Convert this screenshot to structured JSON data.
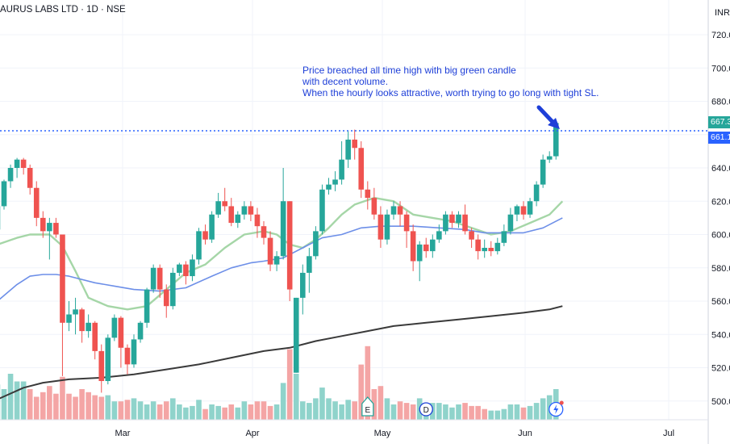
{
  "header": {
    "symbol_title": "AURUS LABS LTD · 1D · NSE",
    "currency": "INR"
  },
  "annotation": {
    "lines": [
      "Price breached all time high with big green candle",
      "with decent volume.",
      "When the hourly looks attractive, worth trying to go long with tight SL."
    ]
  },
  "price_tags": {
    "upper": "667.3",
    "lower": "661.1"
  },
  "colors": {
    "up": "#26a69a",
    "down": "#ef5350",
    "vol_up": "#8fd3cb",
    "vol_down": "#f4a5a5",
    "ma_fast": "#a5d6a7",
    "ma_mid": "#6d8fe8",
    "ma_slow": "#3a3a3a",
    "annotation": "#1e3fd8"
  },
  "events": [
    {
      "label": "E",
      "icon": "earnings-marker"
    },
    {
      "label": "D",
      "icon": "dividend-marker"
    },
    {
      "label": "",
      "icon": "lightning-icon"
    }
  ],
  "chart_data": {
    "type": "candlestick",
    "title": "AURUS LABS LTD · 1D · NSE",
    "ylim": [
      490,
      730
    ],
    "y_ticks": [
      "720.00",
      "700.00",
      "680.00",
      "660.00",
      "640.00",
      "620.00",
      "600.00",
      "580.00",
      "560.00",
      "540.00",
      "520.00",
      "500.00"
    ],
    "x_ticks": [
      "Mar",
      "Apr",
      "May",
      "Jun",
      "Jul"
    ],
    "candles": [
      [
        -1,
        603,
        617,
        620,
        600
      ],
      [
        0,
        617,
        632,
        633,
        615
      ],
      [
        1,
        632,
        640,
        642,
        628
      ],
      [
        2,
        640,
        645,
        646,
        634
      ],
      [
        3,
        645,
        640,
        646,
        636
      ],
      [
        4,
        640,
        628,
        642,
        624
      ],
      [
        5,
        628,
        610,
        632,
        605
      ],
      [
        6,
        610,
        602,
        614,
        598
      ],
      [
        7,
        602,
        607,
        610,
        585
      ],
      [
        8,
        607,
        600,
        610,
        598
      ],
      [
        9,
        600,
        547,
        600,
        515
      ],
      [
        10,
        547,
        552,
        560,
        542
      ],
      [
        11,
        552,
        555,
        562,
        540
      ],
      [
        12,
        555,
        542,
        556,
        535
      ],
      [
        13,
        542,
        547,
        552,
        538
      ],
      [
        14,
        547,
        530,
        548,
        525
      ],
      [
        15,
        530,
        512,
        534,
        505
      ],
      [
        16,
        512,
        538,
        540,
        510
      ],
      [
        17,
        538,
        550,
        552,
        536
      ],
      [
        18,
        550,
        532,
        551,
        520
      ],
      [
        19,
        532,
        522,
        534,
        516
      ],
      [
        20,
        522,
        537,
        540,
        520
      ],
      [
        21,
        537,
        547,
        548,
        535
      ],
      [
        22,
        547,
        567,
        568,
        544
      ],
      [
        23,
        567,
        580,
        582,
        565
      ],
      [
        24,
        580,
        567,
        582,
        562
      ],
      [
        25,
        567,
        557,
        570,
        550
      ],
      [
        26,
        557,
        577,
        580,
        555
      ],
      [
        27,
        577,
        582,
        583,
        575
      ],
      [
        28,
        582,
        575,
        584,
        570
      ],
      [
        29,
        575,
        585,
        588,
        572
      ],
      [
        30,
        585,
        602,
        604,
        582
      ],
      [
        31,
        602,
        597,
        606,
        594
      ],
      [
        32,
        597,
        612,
        614,
        595
      ],
      [
        33,
        612,
        620,
        625,
        610
      ],
      [
        34,
        620,
        617,
        628,
        614
      ],
      [
        35,
        617,
        607,
        622,
        605
      ],
      [
        36,
        607,
        612,
        614,
        604
      ],
      [
        37,
        612,
        617,
        620,
        609
      ],
      [
        38,
        617,
        612,
        620,
        608
      ],
      [
        39,
        612,
        605,
        616,
        598
      ],
      [
        40,
        605,
        598,
        608,
        594
      ],
      [
        41,
        598,
        582,
        602,
        578
      ],
      [
        42,
        582,
        587,
        590,
        578
      ],
      [
        43,
        587,
        620,
        640,
        585
      ],
      [
        44,
        620,
        567,
        620,
        560
      ],
      [
        45,
        517,
        562,
        562,
        517
      ],
      [
        46,
        562,
        577,
        582,
        552
      ],
      [
        47,
        577,
        587,
        592,
        565
      ],
      [
        48,
        587,
        602,
        605,
        585
      ],
      [
        49,
        602,
        627,
        630,
        600
      ],
      [
        50,
        627,
        630,
        634,
        624
      ],
      [
        51,
        630,
        633,
        638,
        626
      ],
      [
        52,
        633,
        645,
        656,
        630
      ],
      [
        53,
        645,
        657,
        662,
        640
      ],
      [
        54,
        657,
        652,
        663,
        645
      ],
      [
        55,
        652,
        627,
        656,
        622
      ],
      [
        56,
        627,
        622,
        632,
        615
      ],
      [
        57,
        622,
        612,
        628,
        609
      ],
      [
        58,
        612,
        597,
        617,
        592
      ],
      [
        59,
        597,
        612,
        615,
        594
      ],
      [
        60,
        612,
        617,
        620,
        609
      ],
      [
        61,
        617,
        612,
        620,
        605
      ],
      [
        62,
        612,
        602,
        614,
        592
      ],
      [
        63,
        602,
        584,
        606,
        578
      ],
      [
        64,
        584,
        594,
        596,
        572
      ],
      [
        65,
        594,
        590,
        598,
        586
      ],
      [
        66,
        590,
        597,
        600,
        586
      ],
      [
        67,
        597,
        602,
        606,
        595
      ],
      [
        68,
        602,
        612,
        614,
        600
      ],
      [
        69,
        612,
        607,
        614,
        604
      ],
      [
        70,
        607,
        612,
        614,
        604
      ],
      [
        71,
        612,
        602,
        618,
        600
      ],
      [
        72,
        602,
        597,
        604,
        592
      ],
      [
        73,
        597,
        590,
        600,
        585
      ],
      [
        74,
        590,
        592,
        597,
        586
      ],
      [
        75,
        592,
        590,
        596,
        587
      ],
      [
        76,
        590,
        595,
        598,
        588
      ],
      [
        77,
        595,
        602,
        606,
        593
      ],
      [
        78,
        602,
        612,
        616,
        600
      ],
      [
        79,
        612,
        617,
        618,
        608
      ],
      [
        80,
        617,
        612,
        620,
        609
      ],
      [
        81,
        612,
        620,
        622,
        610
      ],
      [
        82,
        620,
        630,
        632,
        617
      ],
      [
        83,
        630,
        645,
        648,
        628
      ],
      [
        84,
        645,
        647,
        650,
        643
      ],
      [
        85,
        647,
        667,
        668,
        645
      ]
    ],
    "series": [
      {
        "style": "line",
        "points": [
          [
            -1,
            594
          ],
          [
            2,
            598
          ],
          [
            4,
            600
          ],
          [
            7,
            600
          ],
          [
            9,
            593
          ],
          [
            11,
            578
          ],
          [
            13,
            562
          ],
          [
            16,
            557
          ],
          [
            19,
            555
          ],
          [
            22,
            557
          ],
          [
            25,
            567
          ],
          [
            28,
            577
          ],
          [
            31,
            582
          ],
          [
            34,
            592
          ],
          [
            37,
            600
          ],
          [
            40,
            602
          ],
          [
            42,
            600
          ],
          [
            44,
            594
          ],
          [
            46,
            592
          ],
          [
            48,
            597
          ],
          [
            50,
            604
          ],
          [
            52,
            612
          ],
          [
            54,
            618
          ],
          [
            57,
            622
          ],
          [
            60,
            620
          ],
          [
            63,
            612
          ],
          [
            66,
            610
          ],
          [
            69,
            608
          ],
          [
            72,
            604
          ],
          [
            75,
            600
          ],
          [
            78,
            602
          ],
          [
            81,
            607
          ],
          [
            84,
            612
          ],
          [
            86,
            620
          ]
        ]
      },
      {
        "style": "line",
        "points": [
          [
            -1,
            560
          ],
          [
            2,
            570
          ],
          [
            4,
            575
          ],
          [
            6,
            576
          ],
          [
            8,
            576
          ],
          [
            10,
            575
          ],
          [
            14,
            571
          ],
          [
            17,
            569
          ],
          [
            20,
            567
          ],
          [
            24,
            566
          ],
          [
            28,
            568
          ],
          [
            32,
            575
          ],
          [
            35,
            580
          ],
          [
            38,
            583
          ],
          [
            40,
            584
          ],
          [
            43,
            586
          ],
          [
            46,
            592
          ],
          [
            49,
            598
          ],
          [
            52,
            600
          ],
          [
            55,
            604
          ],
          [
            58,
            605
          ],
          [
            63,
            605
          ],
          [
            67,
            604
          ],
          [
            71,
            603
          ],
          [
            74,
            601
          ],
          [
            77,
            601
          ],
          [
            80,
            601
          ],
          [
            83,
            604
          ],
          [
            86,
            610
          ]
        ]
      },
      {
        "style": "line",
        "points": [
          [
            -1,
            501
          ],
          [
            3,
            508
          ],
          [
            6,
            511
          ],
          [
            10,
            513
          ],
          [
            15,
            514
          ],
          [
            20,
            516
          ],
          [
            25,
            519
          ],
          [
            30,
            522
          ],
          [
            35,
            526
          ],
          [
            40,
            530
          ],
          [
            44,
            532
          ],
          [
            48,
            536
          ],
          [
            52,
            539
          ],
          [
            56,
            542
          ],
          [
            60,
            545
          ],
          [
            65,
            547
          ],
          [
            70,
            549
          ],
          [
            75,
            551
          ],
          [
            80,
            553
          ],
          [
            84,
            555
          ],
          [
            86,
            557
          ]
        ]
      }
    ],
    "volume": [
      [
        -1,
        23,
        1
      ],
      [
        0,
        20,
        1
      ],
      [
        1,
        30,
        1
      ],
      [
        2,
        25,
        1
      ],
      [
        3,
        25,
        1
      ],
      [
        4,
        20,
        0
      ],
      [
        5,
        15,
        0
      ],
      [
        6,
        18,
        0
      ],
      [
        7,
        22,
        0
      ],
      [
        8,
        17,
        0
      ],
      [
        9,
        28,
        0
      ],
      [
        10,
        17,
        0
      ],
      [
        11,
        15,
        0
      ],
      [
        12,
        20,
        0
      ],
      [
        13,
        18,
        0
      ],
      [
        14,
        16,
        0
      ],
      [
        15,
        15,
        0
      ],
      [
        16,
        16,
        1
      ],
      [
        17,
        12,
        1
      ],
      [
        18,
        12,
        0
      ],
      [
        19,
        13,
        0
      ],
      [
        20,
        14,
        1
      ],
      [
        21,
        12,
        1
      ],
      [
        22,
        10,
        1
      ],
      [
        23,
        12,
        1
      ],
      [
        24,
        10,
        0
      ],
      [
        25,
        12,
        0
      ],
      [
        26,
        14,
        1
      ],
      [
        27,
        10,
        1
      ],
      [
        28,
        8,
        1
      ],
      [
        29,
        9,
        1
      ],
      [
        30,
        13,
        1
      ],
      [
        31,
        7,
        0
      ],
      [
        32,
        10,
        1
      ],
      [
        33,
        9,
        1
      ],
      [
        34,
        8,
        0
      ],
      [
        35,
        10,
        0
      ],
      [
        36,
        8,
        1
      ],
      [
        37,
        12,
        1
      ],
      [
        38,
        10,
        0
      ],
      [
        39,
        12,
        0
      ],
      [
        40,
        12,
        0
      ],
      [
        41,
        9,
        0
      ],
      [
        42,
        10,
        1
      ],
      [
        43,
        24,
        1
      ],
      [
        44,
        46,
        0
      ],
      [
        45,
        30,
        1
      ],
      [
        46,
        12,
        1
      ],
      [
        47,
        11,
        1
      ],
      [
        48,
        14,
        1
      ],
      [
        49,
        21,
        1
      ],
      [
        50,
        14,
        1
      ],
      [
        51,
        12,
        1
      ],
      [
        52,
        10,
        1
      ],
      [
        53,
        13,
        1
      ],
      [
        54,
        12,
        0
      ],
      [
        55,
        36,
        0
      ],
      [
        56,
        48,
        0
      ],
      [
        57,
        20,
        0
      ],
      [
        58,
        22,
        0
      ],
      [
        59,
        14,
        1
      ],
      [
        60,
        10,
        1
      ],
      [
        61,
        12,
        0
      ],
      [
        62,
        11,
        0
      ],
      [
        63,
        10,
        0
      ],
      [
        64,
        14,
        1
      ],
      [
        65,
        10,
        1
      ],
      [
        66,
        11,
        1
      ],
      [
        67,
        11,
        1
      ],
      [
        68,
        10,
        1
      ],
      [
        69,
        8,
        1
      ],
      [
        70,
        10,
        1
      ],
      [
        71,
        11,
        0
      ],
      [
        72,
        9,
        0
      ],
      [
        73,
        9,
        0
      ],
      [
        74,
        7,
        0
      ],
      [
        75,
        6,
        1
      ],
      [
        76,
        6,
        1
      ],
      [
        77,
        7,
        1
      ],
      [
        78,
        10,
        1
      ],
      [
        79,
        10,
        1
      ],
      [
        80,
        8,
        0
      ],
      [
        81,
        9,
        1
      ],
      [
        82,
        11,
        1
      ],
      [
        83,
        14,
        1
      ],
      [
        84,
        16,
        1
      ],
      [
        85,
        20,
        1
      ]
    ],
    "markers": [
      {
        "x": 56,
        "label": "E"
      },
      {
        "x": 65,
        "label": "D"
      },
      {
        "x": 85,
        "label": ""
      }
    ]
  }
}
